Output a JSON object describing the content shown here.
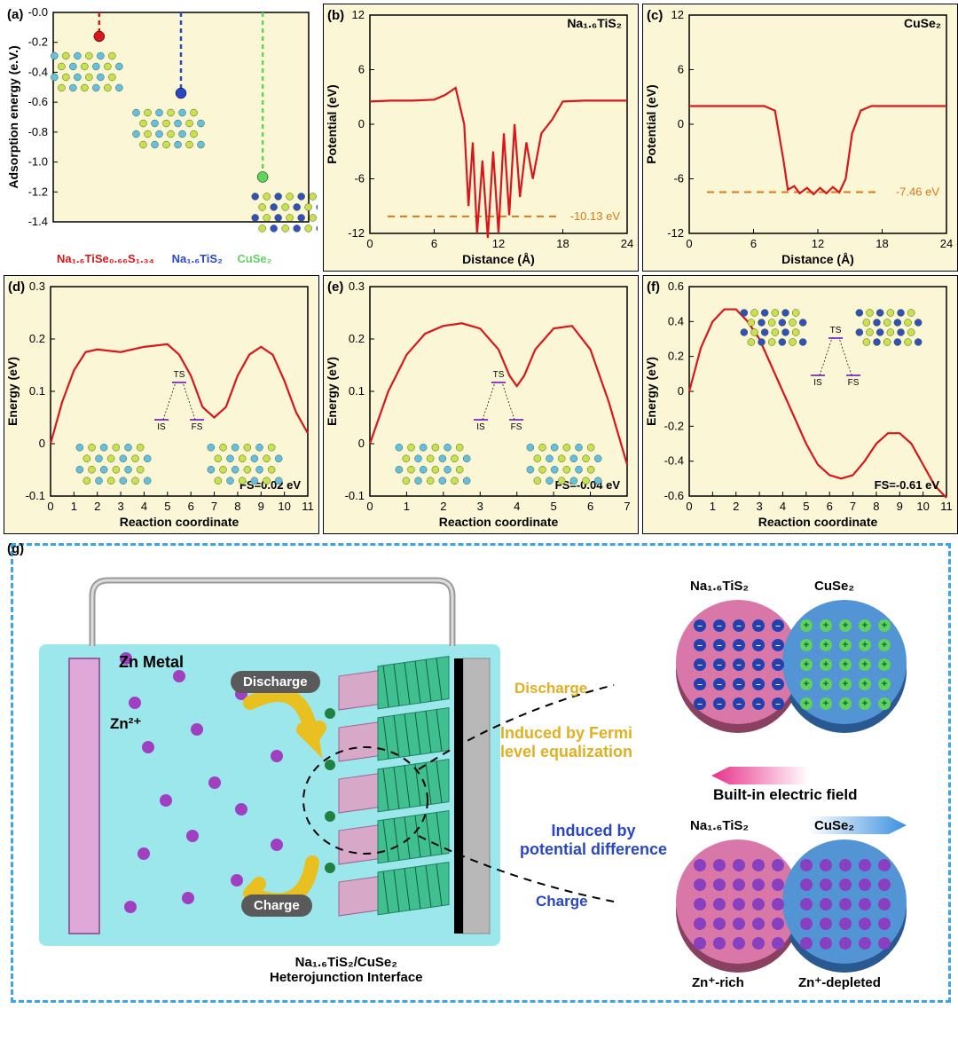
{
  "bg_plot": "#faf6d6",
  "line_color": "#d9161a",
  "axis_font": 13,
  "panelA": {
    "label": "(a)",
    "ylabel": "Adsorption energy (e.V.)",
    "ylim": [
      -1.4,
      0.0
    ],
    "ytick_step": 0.2,
    "points": [
      {
        "x": 0.18,
        "y": -0.16,
        "color": "#d9161a"
      },
      {
        "x": 0.5,
        "y": -0.54,
        "color": "#2946c4"
      },
      {
        "x": 0.82,
        "y": -1.1,
        "color": "#5fd45f"
      }
    ],
    "legend": [
      {
        "text": "Na₁.₆TiSe₀.₆₆S₁.₃₄",
        "color": "#d9161a"
      },
      {
        "text": "Na₁.₆TiS₂",
        "color": "#2946c4"
      },
      {
        "text": "CuSe₂",
        "color": "#5fd45f"
      }
    ]
  },
  "panelB": {
    "label": "(b)",
    "title": "Na₁.₆TiS₂",
    "xlabel": "Distance (Å)",
    "ylabel": "Potential (eV)",
    "xlim": [
      0,
      24
    ],
    "xtick_step": 6,
    "ylim": [
      -12,
      12
    ],
    "ytick_step": 6,
    "marker_y": -10.13,
    "marker_text": "-10.13 eV",
    "marker_color": "#d97a1a",
    "curve": [
      [
        0,
        2.5
      ],
      [
        2,
        2.6
      ],
      [
        4,
        2.6
      ],
      [
        6,
        2.7
      ],
      [
        7,
        3.2
      ],
      [
        8,
        4.0
      ],
      [
        8.8,
        0
      ],
      [
        9.2,
        -9
      ],
      [
        9.6,
        -2
      ],
      [
        10,
        -12
      ],
      [
        10.5,
        -4
      ],
      [
        11,
        -12.5
      ],
      [
        11.5,
        -3
      ],
      [
        12,
        -12
      ],
      [
        12.5,
        -1
      ],
      [
        13,
        -10
      ],
      [
        13.5,
        0
      ],
      [
        14,
        -8
      ],
      [
        14.6,
        -2
      ],
      [
        15.2,
        -6
      ],
      [
        16,
        -1
      ],
      [
        17,
        0.5
      ],
      [
        18,
        2.5
      ],
      [
        20,
        2.6
      ],
      [
        24,
        2.6
      ]
    ]
  },
  "panelC": {
    "label": "(c)",
    "title": "CuSe₂",
    "xlabel": "Distance (Å)",
    "ylabel": "Potential (eV)",
    "xlim": [
      0,
      24
    ],
    "xtick_step": 6,
    "ylim": [
      -12,
      12
    ],
    "ytick_step": 6,
    "marker_y": -7.46,
    "marker_text": "-7.46 eV",
    "marker_color": "#d97a1a",
    "curve": [
      [
        0,
        2.0
      ],
      [
        4,
        2.0
      ],
      [
        7,
        2.0
      ],
      [
        8,
        1.5
      ],
      [
        8.8,
        -4
      ],
      [
        9.2,
        -7.2
      ],
      [
        9.8,
        -6.8
      ],
      [
        10.3,
        -7.6
      ],
      [
        11,
        -7.0
      ],
      [
        11.6,
        -7.7
      ],
      [
        12.2,
        -7.0
      ],
      [
        12.8,
        -7.6
      ],
      [
        13.4,
        -6.9
      ],
      [
        14,
        -7.5
      ],
      [
        14.6,
        -6.0
      ],
      [
        15.2,
        -1
      ],
      [
        16,
        1.5
      ],
      [
        17,
        2.0
      ],
      [
        20,
        2.0
      ],
      [
        24,
        2.0
      ]
    ]
  },
  "panelD": {
    "label": "(d)",
    "xlabel": "Reaction coordinate",
    "ylabel": "Energy (eV)",
    "xlim": [
      0,
      11
    ],
    "xtick_step": 1,
    "ylim": [
      -0.1,
      0.3
    ],
    "ytick_step": 0.1,
    "fs_text": "FS=0.02 eV",
    "curve": [
      [
        0,
        0
      ],
      [
        0.5,
        0.08
      ],
      [
        1,
        0.14
      ],
      [
        1.5,
        0.175
      ],
      [
        2,
        0.18
      ],
      [
        3,
        0.175
      ],
      [
        4,
        0.185
      ],
      [
        5,
        0.19
      ],
      [
        5.5,
        0.17
      ],
      [
        6,
        0.13
      ],
      [
        6.5,
        0.07
      ],
      [
        7,
        0.05
      ],
      [
        7.5,
        0.07
      ],
      [
        8,
        0.13
      ],
      [
        8.5,
        0.17
      ],
      [
        9,
        0.185
      ],
      [
        9.5,
        0.17
      ],
      [
        10,
        0.12
      ],
      [
        10.5,
        0.06
      ],
      [
        11,
        0.02
      ]
    ]
  },
  "panelE": {
    "label": "(e)",
    "xlabel": "Reaction coordinate",
    "ylabel": "Energy (eV)",
    "xlim": [
      0,
      7
    ],
    "xtick_step": 1,
    "ylim": [
      -0.1,
      0.3
    ],
    "ytick_step": 0.1,
    "fs_text": "FS=-0.04 eV",
    "curve": [
      [
        0,
        0
      ],
      [
        0.5,
        0.1
      ],
      [
        1,
        0.17
      ],
      [
        1.5,
        0.21
      ],
      [
        2,
        0.225
      ],
      [
        2.5,
        0.23
      ],
      [
        3,
        0.22
      ],
      [
        3.5,
        0.18
      ],
      [
        3.8,
        0.13
      ],
      [
        4,
        0.11
      ],
      [
        4.2,
        0.13
      ],
      [
        4.5,
        0.18
      ],
      [
        5,
        0.22
      ],
      [
        5.5,
        0.225
      ],
      [
        6,
        0.18
      ],
      [
        6.5,
        0.08
      ],
      [
        7,
        -0.04
      ]
    ]
  },
  "panelF": {
    "label": "(f)",
    "xlabel": "Reaction coordinate",
    "ylabel": "Energy (eV)",
    "xlim": [
      0,
      11
    ],
    "xtick_step": 1,
    "ylim": [
      -0.6,
      0.6
    ],
    "ytick_step": 0.2,
    "fs_text": "FS=-0.61 eV",
    "curve": [
      [
        0,
        0
      ],
      [
        0.5,
        0.25
      ],
      [
        1,
        0.4
      ],
      [
        1.5,
        0.47
      ],
      [
        2,
        0.47
      ],
      [
        2.5,
        0.4
      ],
      [
        3,
        0.3
      ],
      [
        3.5,
        0.15
      ],
      [
        4,
        0.0
      ],
      [
        4.5,
        -0.15
      ],
      [
        5,
        -0.3
      ],
      [
        5.5,
        -0.42
      ],
      [
        6,
        -0.48
      ],
      [
        6.5,
        -0.5
      ],
      [
        7,
        -0.48
      ],
      [
        7.5,
        -0.4
      ],
      [
        8,
        -0.3
      ],
      [
        8.5,
        -0.24
      ],
      [
        9,
        -0.24
      ],
      [
        9.5,
        -0.3
      ],
      [
        10,
        -0.42
      ],
      [
        10.5,
        -0.54
      ],
      [
        11,
        -0.61
      ]
    ]
  },
  "schematic": {
    "label": "(g)",
    "border_color": "#3aa6e8",
    "cell_bg": "#9be7ec",
    "labels": {
      "zn_metal": "Zn Metal",
      "zn_ion": "Zn²⁺",
      "discharge": "Discharge",
      "charge": "Charge",
      "hetero": "Na₁.₆TiS₂/CuSe₂\nHeterojunction Interface",
      "fermi": "Induced by Fermi\nlevel equalization",
      "potdiff": "Induced by\npotential difference",
      "bief": "Built-in electric field",
      "na_tis2": "Na₁.₆TiS₂",
      "cuse2": "CuSe₂",
      "zn_rich": "Zn⁺-rich",
      "zn_dep": "Zn⁺-depleted"
    },
    "colors": {
      "fermi_text": "#e0b020",
      "potdiff_text": "#2946c4",
      "zn_ion": "#a040c0",
      "disc_pink": "#d978a8",
      "disc_blue": "#5294d4",
      "neg_charge": "#2440b0",
      "pos_charge": "#60d060",
      "zn_charge": "#8840c0",
      "electrode_pink": "#e0a8d8",
      "current_collector": "#b8b8b8",
      "cathode_green": "#40c090",
      "cathode_pink": "#d8a8c8",
      "arrow_pink": "#e8308a",
      "arrow_blue": "#3a90e0"
    }
  }
}
